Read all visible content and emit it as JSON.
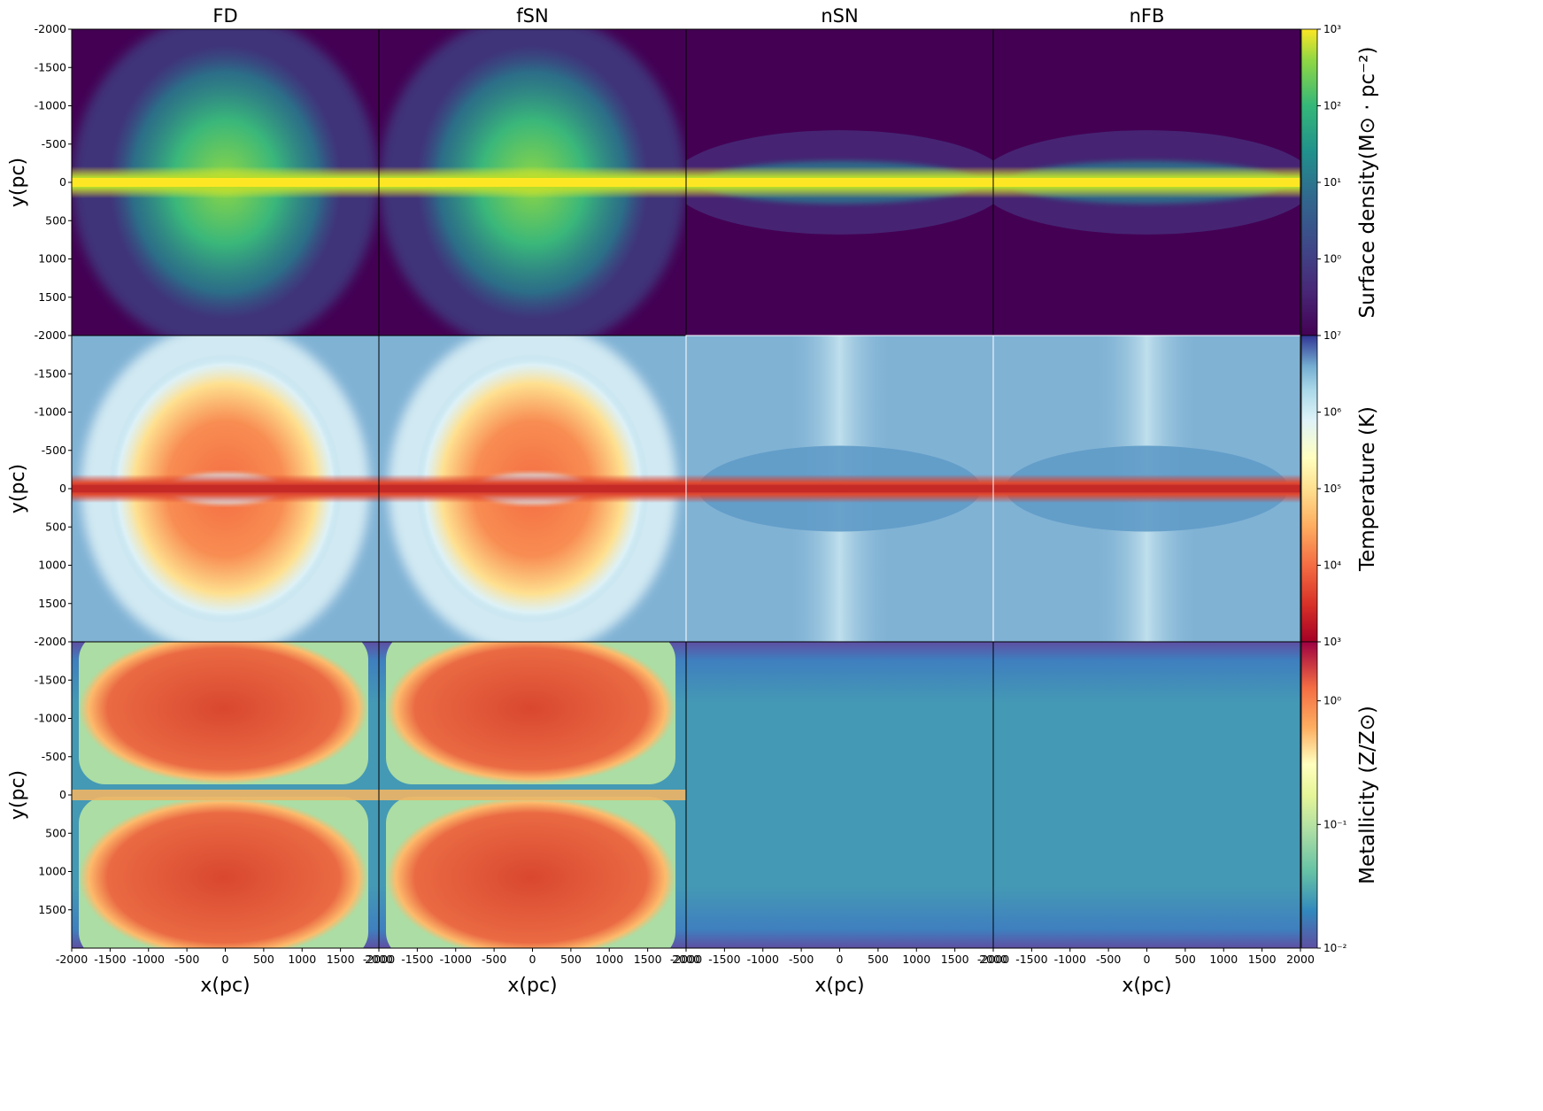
{
  "figure": {
    "columns": [
      "FD",
      "fSN",
      "nSN",
      "nFB"
    ],
    "ylabel": "y(pc)",
    "xlabel": "x(pc)",
    "yticks": [
      "-2000",
      "-1500",
      "-1000",
      "-500",
      "0",
      "500",
      "1000",
      "1500"
    ],
    "xticks": [
      "-2000",
      "-1500",
      "-1000",
      "-500",
      "0",
      "500",
      "1000",
      "1500",
      "2000"
    ]
  },
  "chart_data": [
    {
      "type": "heatmap",
      "row": 1,
      "quantity": "Surface density",
      "colorbar_label": "Surface density(M⊙ · pc⁻²)",
      "colormap": "viridis",
      "scale": "log",
      "clim": [
        0.1,
        1000
      ],
      "colorbar_ticks": [
        "10⁰",
        "10¹",
        "10²",
        "10³"
      ],
      "panels": [
        "FD",
        "fSN",
        "nSN",
        "nFB"
      ],
      "xlim": [
        -2000,
        2000
      ],
      "ylim": [
        -2000,
        2000
      ]
    },
    {
      "type": "heatmap",
      "row": 2,
      "quantity": "Temperature",
      "colorbar_label": "Temperature (K)",
      "colormap": "RdYlBu",
      "scale": "log",
      "clim": [
        1000,
        10000000
      ],
      "colorbar_ticks": [
        "10³",
        "10⁴",
        "10⁵",
        "10⁶",
        "10⁷"
      ],
      "panels": [
        "FD",
        "fSN",
        "nSN",
        "nFB"
      ],
      "xlim": [
        -2000,
        2000
      ],
      "ylim": [
        -2000,
        2000
      ]
    },
    {
      "type": "heatmap",
      "row": 3,
      "quantity": "Metallicity",
      "colorbar_label": "Metallicity (Z/Z⊙)",
      "colormap": "Spectral",
      "scale": "log",
      "clim": [
        0.01,
        3
      ],
      "colorbar_ticks": [
        "10⁻²",
        "10⁻¹",
        "10⁰"
      ],
      "panels": [
        "FD",
        "fSN",
        "nSN",
        "nFB"
      ],
      "xlim": [
        -2000,
        2000
      ],
      "ylim": [
        -2000,
        2000
      ]
    }
  ]
}
